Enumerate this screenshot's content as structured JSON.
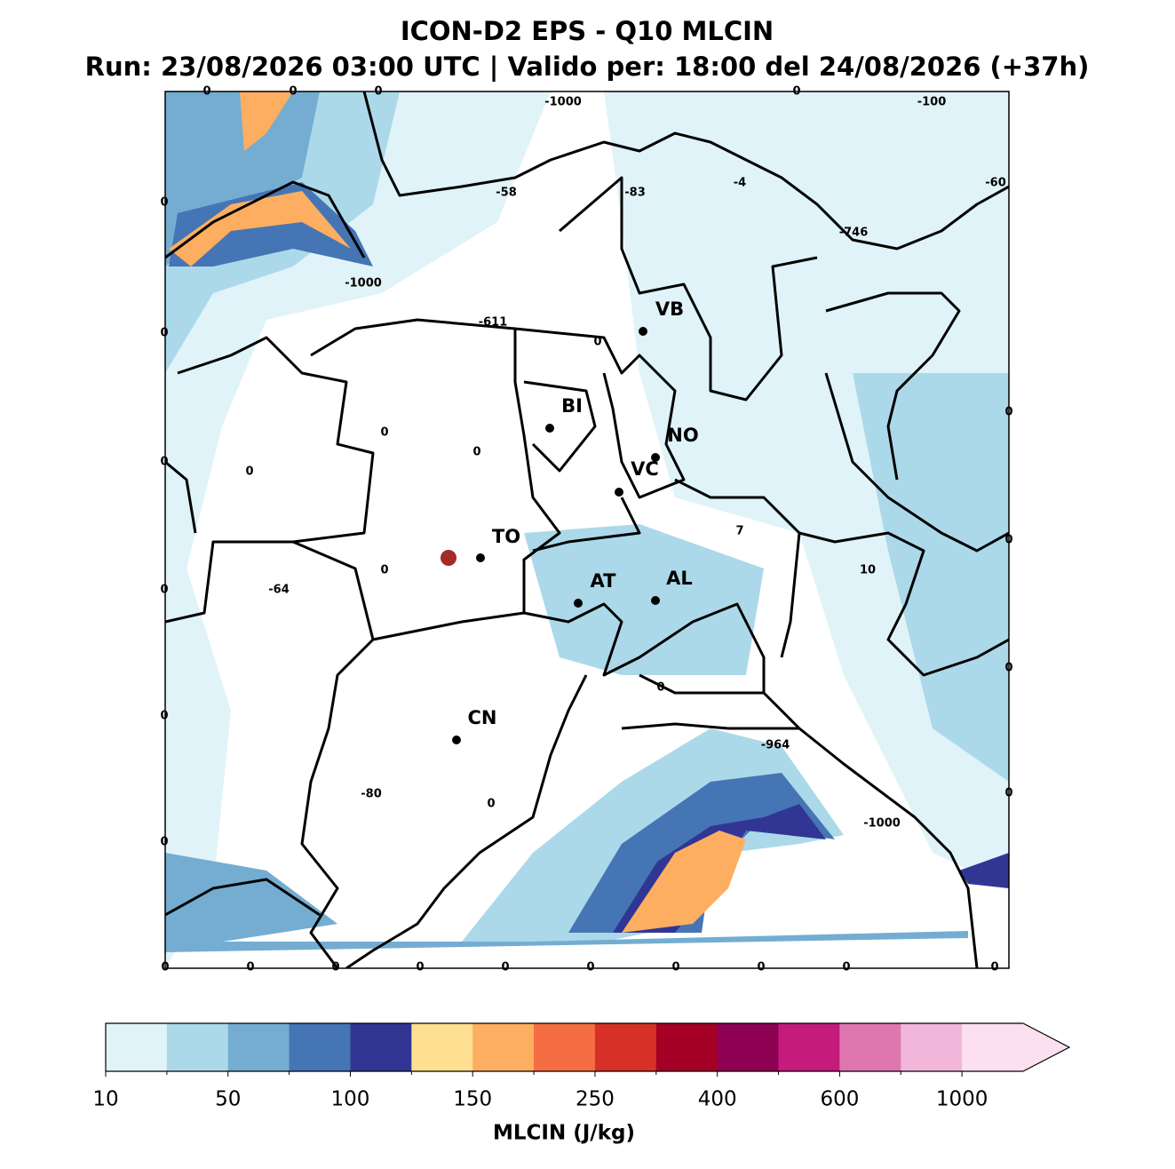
{
  "title": "ICON-D2 EPS - Q10 MLCIN",
  "subtitle": "Run: 23/08/2026 03:00 UTC | Valido per: 18:00 del 24/08/2026 (+37h)",
  "cities": [
    "VB",
    "BI",
    "NO",
    "VC",
    "TO",
    "AT",
    "AL",
    "CN"
  ],
  "contour_labels": [
    "0",
    "0",
    "0",
    "-1000",
    "0",
    "-100",
    "0",
    "-58",
    "-83",
    "-4",
    "-60",
    "-746",
    "-1000",
    "-611",
    "0",
    "0",
    "0",
    "0",
    "0",
    "0",
    "0",
    "7",
    "0",
    "0",
    "-64",
    "10",
    "0",
    "0",
    "0",
    "0",
    "-964",
    "-80",
    "0",
    "0",
    "-1000",
    "0",
    "0",
    "0",
    "0",
    "0",
    "0",
    "0",
    "0",
    "0",
    "0",
    "0"
  ],
  "colorbar": {
    "label": "MLCIN (J/kg)",
    "ticks": [
      10,
      50,
      100,
      150,
      250,
      400,
      600,
      1000
    ],
    "colors": [
      "#e0f3f8",
      "#abd9e9",
      "#74add1",
      "#4575b4",
      "#313695",
      "#fee090",
      "#fdae61",
      "#f46d43",
      "#d73027",
      "#a50026",
      "#8e0152",
      "#c51b7d",
      "#de77ae",
      "#f1b6da",
      "#fde0ef"
    ]
  }
}
